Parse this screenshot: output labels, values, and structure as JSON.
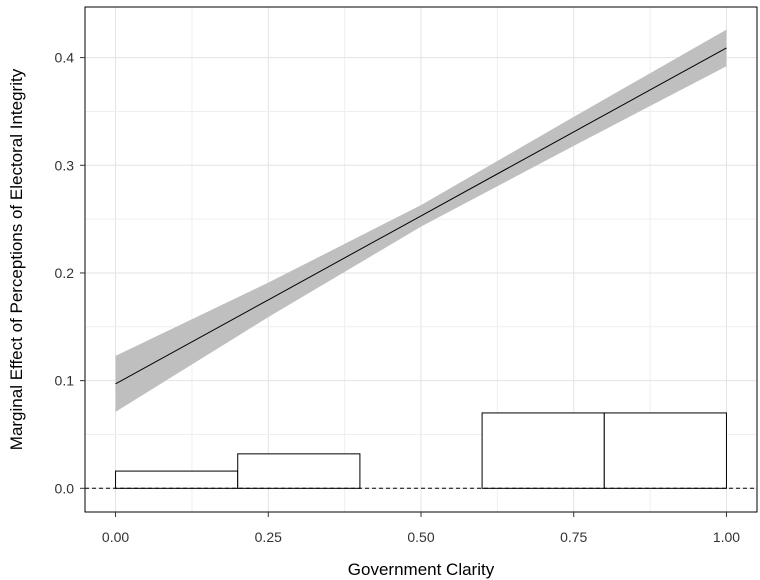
{
  "chart_data": {
    "type": "line",
    "xlabel": "Government Clarity",
    "ylabel": "Marginal Effect of Perceptions of Electoral Integrity",
    "xlim": [
      -0.05,
      1.05
    ],
    "ylim": [
      -0.022,
      0.447
    ],
    "x_ticks": [
      0.0,
      0.25,
      0.5,
      0.75,
      1.0
    ],
    "x_tick_labels": [
      "0.00",
      "0.25",
      "0.50",
      "0.75",
      "1.00"
    ],
    "y_ticks": [
      0.0,
      0.1,
      0.2,
      0.3,
      0.4
    ],
    "y_tick_labels": [
      "0.0",
      "0.1",
      "0.2",
      "0.3",
      "0.4"
    ],
    "grid": true,
    "series": [
      {
        "x": [
          0.0,
          0.25,
          0.5,
          0.75,
          1.0
        ],
        "values": [
          0.097,
          0.175,
          0.253,
          0.331,
          0.409
        ],
        "ci_lower": [
          0.071,
          0.159,
          0.243,
          0.318,
          0.392
        ],
        "ci_upper": [
          0.123,
          0.191,
          0.263,
          0.345,
          0.426
        ],
        "color": "#000000",
        "band_color": "#bfbfbf"
      }
    ],
    "reference_line": {
      "y": 0.0,
      "style": "dashed",
      "color": "#000000"
    },
    "histogram": {
      "bins": [
        {
          "x0": 0.0,
          "x1": 0.2,
          "height": 0.016
        },
        {
          "x0": 0.2,
          "x1": 0.4,
          "height": 0.032
        },
        {
          "x0": 0.4,
          "x1": 0.6,
          "height": 0.0
        },
        {
          "x0": 0.6,
          "x1": 0.8,
          "height": 0.07
        },
        {
          "x0": 0.8,
          "x1": 1.0,
          "height": 0.07
        }
      ],
      "fill": "#ffffff",
      "stroke": "#000000"
    }
  }
}
